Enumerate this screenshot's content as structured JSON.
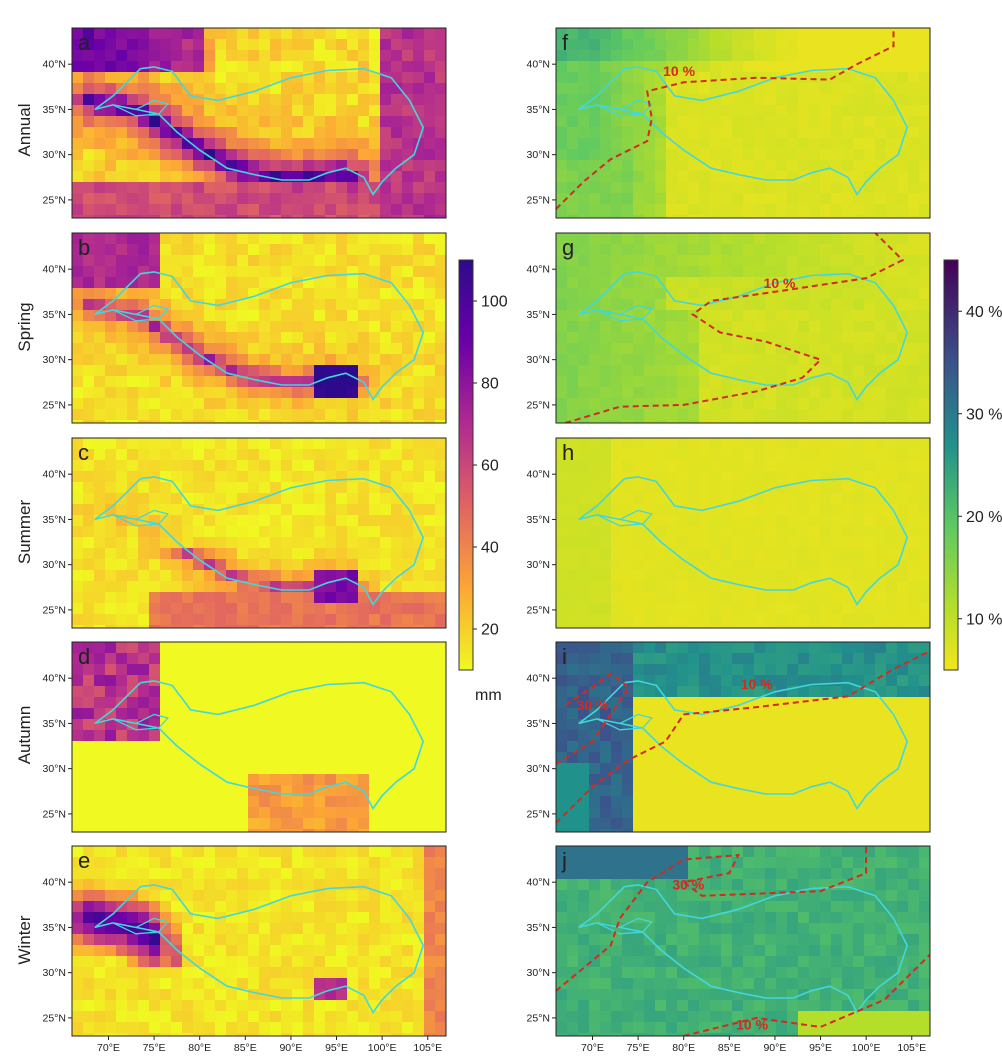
{
  "figure": {
    "rows": [
      {
        "label": "Annual",
        "left_panel": "a",
        "right_panel": "f"
      },
      {
        "label": "Spring",
        "left_panel": "b",
        "right_panel": "g"
      },
      {
        "label": "Summer",
        "left_panel": "c",
        "right_panel": "h"
      },
      {
        "label": "Autumn",
        "left_panel": "d",
        "right_panel": "i"
      },
      {
        "label": "Winter",
        "left_panel": "e",
        "right_panel": "j"
      }
    ],
    "lat_ticks": [
      "25°N",
      "30°N",
      "35°N",
      "40°N"
    ],
    "lon_ticks": [
      "70°E",
      "75°E",
      "80°E",
      "85°E",
      "90°E",
      "95°E",
      "100°E",
      "105°E"
    ],
    "lon_range": [
      66,
      107
    ],
    "lat_range": [
      23,
      44
    ],
    "boundary_color": "#40d8dc",
    "contour_color": "#d42a1e"
  },
  "left_colorbar": {
    "colormap": "plasma (reversed)",
    "range": [
      10,
      110
    ],
    "ticks": [
      "20",
      "40",
      "60",
      "80",
      "100"
    ],
    "unit_label": "mm"
  },
  "right_colorbar": {
    "colormap": "viridis (reversed)",
    "range": [
      5,
      45
    ],
    "ticks": [
      "10 %",
      "20 %",
      "30 %",
      "40 %"
    ]
  },
  "contour_labels": {
    "f": [
      "10 %"
    ],
    "g": [
      "10 %"
    ],
    "i": [
      "30 %",
      "10 %"
    ],
    "j": [
      "30 %",
      "10 %"
    ]
  }
}
